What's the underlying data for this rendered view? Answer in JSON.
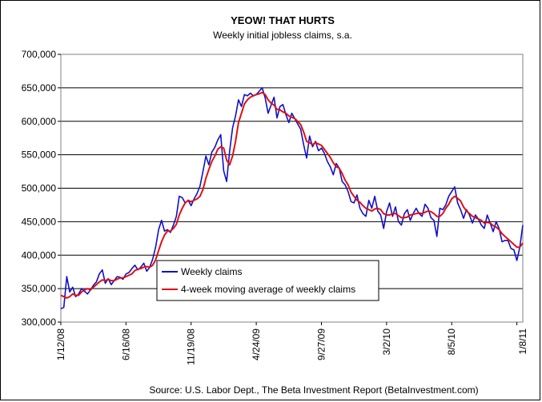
{
  "chart_data": {
    "type": "line",
    "title": "YEOW! THAT HURTS",
    "subtitle": "Weekly initial jobless claims, s.a.",
    "source": "Source: U.S. Labor Dept., The Beta Investment Report (BetaInvestment.com)",
    "ylim": [
      300000,
      700000
    ],
    "y_ticks": [
      "300,000",
      "350,000",
      "400,000",
      "450,000",
      "500,000",
      "550,000",
      "600,000",
      "650,000",
      "700,000"
    ],
    "y_tick_values": [
      300000,
      350000,
      400000,
      450000,
      500000,
      550000,
      600000,
      650000,
      700000
    ],
    "x_ticks": [
      "1/12/08",
      "6/16/08",
      "11/19/08",
      "4/24/09",
      "9/27/09",
      "3/2/10",
      "8/5/10",
      "1/8/11"
    ],
    "x_tick_index": [
      0,
      22,
      44,
      66,
      88,
      110,
      132,
      156
    ],
    "grid": true,
    "legend_position": "inside lower-left",
    "colors": {
      "weekly": "#1010c8",
      "average": "#e01010",
      "grid": "#000000"
    },
    "series": [
      {
        "name": "Weekly claims",
        "values": [
          320000,
          322000,
          368000,
          345000,
          352000,
          338000,
          342000,
          350000,
          346000,
          342000,
          348000,
          355000,
          360000,
          372000,
          378000,
          358000,
          365000,
          356000,
          362000,
          368000,
          367000,
          364000,
          372000,
          374000,
          380000,
          385000,
          378000,
          382000,
          388000,
          376000,
          382000,
          394000,
          412000,
          438000,
          452000,
          436000,
          438000,
          434000,
          445000,
          458000,
          488000,
          486000,
          478000,
          482000,
          474000,
          484000,
          492000,
          503000,
          525000,
          548000,
          535000,
          554000,
          561000,
          572000,
          580000,
          526000,
          510000,
          555000,
          590000,
          608000,
          632000,
          622000,
          640000,
          638000,
          642000,
          638000,
          640000,
          645000,
          650000,
          635000,
          612000,
          624000,
          636000,
          605000,
          622000,
          625000,
          610000,
          598000,
          612000,
          604000,
          596000,
          588000,
          565000,
          545000,
          578000,
          562000,
          570000,
          556000,
          560000,
          552000,
          540000,
          532000,
          520000,
          537000,
          530000,
          510000,
          505000,
          495000,
          480000,
          478000,
          490000,
          470000,
          462000,
          458000,
          482000,
          470000,
          488000,
          466000,
          460000,
          440000,
          465000,
          478000,
          458000,
          472000,
          450000,
          445000,
          462000,
          468000,
          452000,
          462000,
          470000,
          462000,
          458000,
          476000,
          470000,
          456000,
          452000,
          428000,
          470000,
          468000,
          475000,
          488000,
          495000,
          502000,
          478000,
          468000,
          455000,
          468000,
          460000,
          448000,
          460000,
          454000,
          445000,
          440000,
          460000,
          448000,
          435000,
          450000,
          440000,
          420000,
          422000,
          422000,
          410000,
          408000,
          392000,
          412000,
          445000
        ]
      },
      {
        "name": "4-week moving average of weekly claims",
        "values": [
          340000,
          338000,
          336000,
          338000,
          342000,
          340000,
          340000,
          345000,
          348000,
          350000,
          348000,
          352000,
          356000,
          360000,
          363000,
          362000,
          364000,
          362000,
          362000,
          364000,
          366000,
          366000,
          368000,
          370000,
          372000,
          377000,
          379000,
          380000,
          382000,
          383000,
          382000,
          385000,
          393000,
          407000,
          420000,
          430000,
          436000,
          436000,
          440000,
          446000,
          460000,
          470000,
          478000,
          482000,
          480000,
          482000,
          484000,
          488000,
          498000,
          515000,
          528000,
          540000,
          548000,
          558000,
          562000,
          560000,
          542000,
          535000,
          548000,
          570000,
          598000,
          612000,
          626000,
          632000,
          636000,
          638000,
          640000,
          641000,
          643000,
          640000,
          632000,
          627000,
          624000,
          618000,
          617000,
          614000,
          612000,
          608000,
          606000,
          604000,
          600000,
          595000,
          584000,
          570000,
          568000,
          565000,
          568000,
          566000,
          564000,
          558000,
          552000,
          546000,
          538000,
          532000,
          530000,
          522000,
          512000,
          505000,
          494000,
          488000,
          482000,
          479000,
          474000,
          470000,
          468000,
          466000,
          469000,
          470000,
          468000,
          462000,
          460000,
          460000,
          462000,
          462000,
          459000,
          456000,
          456000,
          457000,
          460000,
          461000,
          462000,
          463000,
          462000,
          464000,
          466000,
          465000,
          462000,
          458000,
          458000,
          462000,
          470000,
          476000,
          484000,
          488000,
          485000,
          481000,
          472000,
          466000,
          462000,
          458000,
          456000,
          454000,
          452000,
          448000,
          449000,
          448000,
          444000,
          442000,
          438000,
          432000,
          428000,
          424000,
          420000,
          416000,
          412000,
          412000,
          418000
        ]
      }
    ]
  }
}
